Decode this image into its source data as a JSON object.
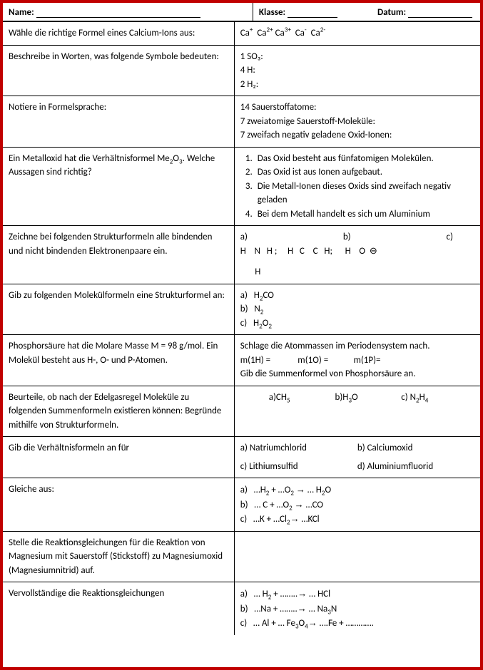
{
  "header": {
    "name_label": "Name:",
    "klasse_label": "Klasse:",
    "datum_label": "Datum:"
  },
  "rows": [
    {
      "q": "Wähle die richtige Formel eines Calcium-Ions aus:",
      "a_html": "Ca<sup>+</sup>&nbsp;&nbsp;Ca<sup>2+</sup>&nbsp;Ca<sup>3+</sup>&nbsp;&nbsp;Ca<sup>-</sup>&nbsp;&nbsp;Ca<sup>2-</sup>"
    },
    {
      "q": "Beschreibe in Worten, was folgende Symbole bedeuten:",
      "a_lines": [
        "1 SO₃:",
        "4 H:",
        "2 H₂:"
      ]
    },
    {
      "q": "Notiere in Formelsprache:",
      "a_lines": [
        "14 Sauerstoffatome:",
        "7 zweiatomige Sauerstoff-Moleküle:",
        "7 zweifach negativ geladene Oxid-Ionen:"
      ]
    },
    {
      "q_html": "Ein Metalloxid hat die Verhältnisformel Me<sub>2</sub>O<sub>3</sub>. Welche Aussagen sind richtig?",
      "a_list": [
        "Das Oxid besteht aus fünfatomigen Molekülen.",
        "Das Oxid ist aus Ionen aufgebaut.",
        "Die Metall-Ionen dieses Oxids sind zweifach negativ geladen",
        "Bei dem Metall handelt es sich um Aluminium"
      ]
    },
    {
      "q": "Zeichne bei folgenden Strukturformeln alle bindenden und nicht bindenden Elektronenpaare ein.",
      "a_struct": {
        "labels": [
          "a)",
          "b)",
          "c)"
        ],
        "row1": "H&nbsp;&nbsp;&nbsp;&nbsp;N&nbsp;&nbsp;&nbsp;H&nbsp;;&nbsp;&nbsp;&nbsp;&nbsp;&nbsp;H&nbsp;&nbsp;&nbsp;C&nbsp;&nbsp;&nbsp;&nbsp;C&nbsp;&nbsp;&nbsp;H;&nbsp;&nbsp;&nbsp;&nbsp;&nbsp;&nbsp;H&nbsp;&nbsp;&nbsp;&nbsp;O&nbsp;&nbsp;⊖",
        "row2": "&nbsp;&nbsp;&nbsp;&nbsp;&nbsp;&nbsp;&nbsp;H"
      }
    },
    {
      "q": "Gib zu folgenden Molekülformeln eine Strukturformel an:",
      "a_lines_html": [
        "a)&nbsp;&nbsp;&nbsp;H<sub>2</sub>CO",
        "b)&nbsp;&nbsp;&nbsp;N<sub>2</sub>",
        "c)&nbsp;&nbsp;&nbsp;H<sub>2</sub>O<sub>2</sub>"
      ]
    },
    {
      "q": "Phosphorsäure hat die Molare Masse M = 98 g/mol. Ein Molekül besteht aus H-, O- und P-Atomen.",
      "a_html_block": "Schlage die Atommassen im Periodensystem nach.<br>m(1H) =&nbsp;&nbsp;&nbsp;&nbsp;&nbsp;&nbsp;&nbsp;&nbsp;&nbsp;&nbsp;&nbsp;&nbsp;&nbsp;m(1O) =&nbsp;&nbsp;&nbsp;&nbsp;&nbsp;&nbsp;&nbsp;&nbsp;&nbsp;&nbsp;&nbsp;&nbsp;m(1P)=<br>Gib die Summenformel von Phosphorsäure an."
    },
    {
      "q": "Beurteile, ob nach der Edelgasregel Moleküle zu folgenden Summenformeln existieren können: Begründe mithilfe von Strukturformeln.",
      "a_opts3_html": [
        "a)CH<sub>5</sub>",
        "b)H<sub>3</sub>O",
        "c) N<sub>2</sub>H<sub>4</sub>"
      ]
    },
    {
      "q": "Gib die Verhältnisformeln an für",
      "a_2x2": [
        [
          "a) Natriumchlorid",
          "b) Calciumoxid"
        ],
        [
          "c) Lithiumsulfid",
          "d) Aluminiumfluorid"
        ]
      ]
    },
    {
      "q": "Gleiche aus:",
      "a_lines_html": [
        "a)&nbsp;&nbsp;&nbsp;…H<sub>2</sub> + …O<sub>2</sub> <span class='arrow'>→</span> … H<sub>2</sub>O",
        "b)&nbsp;&nbsp;&nbsp;… C  + …O<sub>2</sub> <span class='arrow'>→</span> …CO",
        "c)&nbsp;&nbsp;&nbsp;…K  + …Cl<sub>2</sub><span class='arrow'>→</span> …KCl"
      ]
    },
    {
      "q": "Stelle die Reaktionsgleichungen für die Reaktion von Magnesium mit Sauerstoff (Stickstoff) zu Magnesiumoxid (Magnesiumnitrid) auf.",
      "a_html": ""
    },
    {
      "q": "Vervollständige die Reaktionsgleichungen",
      "a_lines_html": [
        "a)&nbsp;&nbsp;&nbsp;… H<sub>2</sub> + ……..<span class='arrow'>→</span> … HCl",
        "b)&nbsp;&nbsp;&nbsp;…Na + ……..<span class='arrow'>→</span> … Na<sub>3</sub>N",
        "c)&nbsp;&nbsp;&nbsp;… Al + … Fe<sub>3</sub>O<sub>4</sub><span class='arrow'>→</span> ….Fe + …………."
      ]
    }
  ]
}
